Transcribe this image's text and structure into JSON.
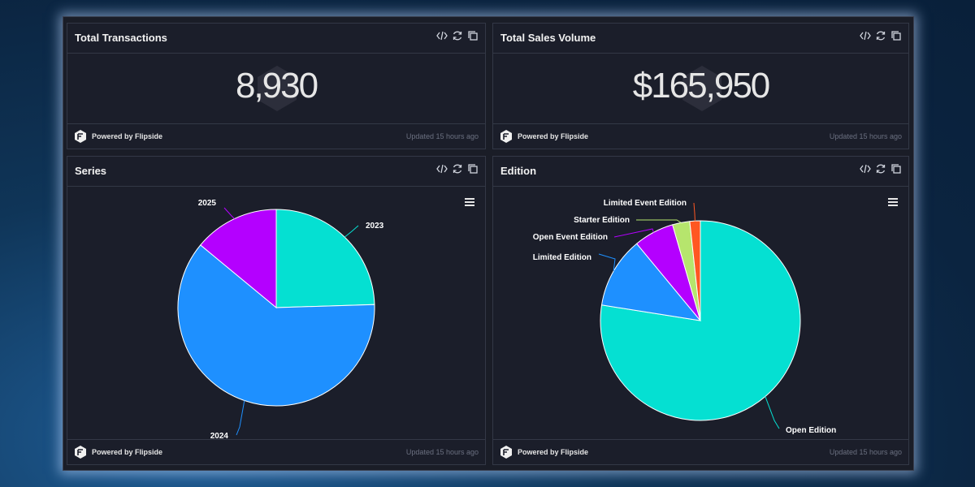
{
  "cards": {
    "transactions": {
      "title": "Total Transactions",
      "value": "8,930"
    },
    "sales": {
      "title": "Total Sales Volume",
      "value": "$165,950"
    },
    "series": {
      "title": "Series"
    },
    "edition": {
      "title": "Edition"
    }
  },
  "footer": {
    "powered": "Powered by Flipside",
    "updated": "Updated 15 hours ago"
  },
  "icons": {
    "code": "code-icon",
    "refresh": "refresh-icon",
    "copy": "copy-icon",
    "menu": "hamburger-menu-icon",
    "logo": "flipside-logo-icon"
  },
  "colors": {
    "teal": "#05e0d2",
    "blue": "#1e90ff",
    "purple": "#b400ff",
    "lime": "#b6e56d",
    "orange": "#ff5722"
  },
  "chart_data": [
    {
      "type": "pie",
      "title": "Series",
      "categories": [
        "2023",
        "2024",
        "2025"
      ],
      "values": [
        24.5,
        61.5,
        14.0
      ],
      "colors": [
        "#05e0d2",
        "#1e90ff",
        "#b400ff"
      ]
    },
    {
      "type": "pie",
      "title": "Edition",
      "categories": [
        "Open Edition",
        "Limited Edition",
        "Open Event Edition",
        "Starter Edition",
        "Limited Event Edition"
      ],
      "values": [
        77.5,
        11.5,
        6.5,
        2.8,
        1.7
      ],
      "colors": [
        "#05e0d2",
        "#1e90ff",
        "#b400ff",
        "#b6e56d",
        "#ff5722"
      ]
    }
  ]
}
